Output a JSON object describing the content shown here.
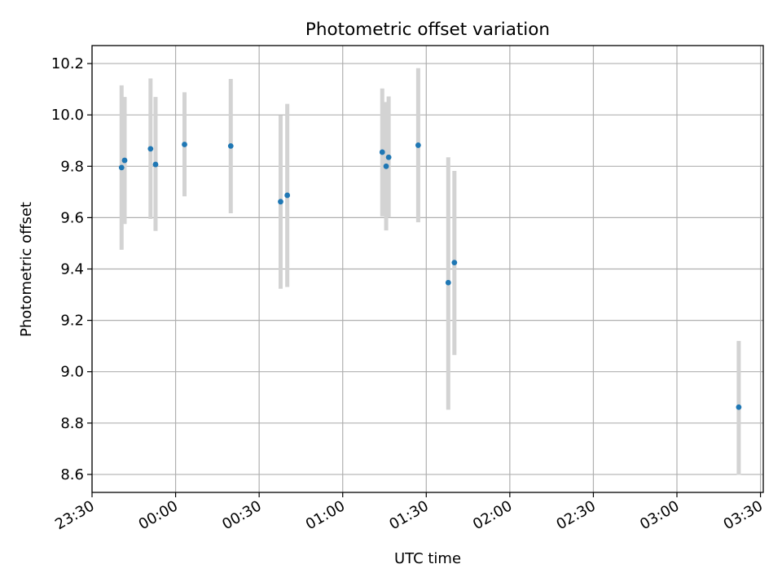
{
  "chart_data": {
    "type": "scatter",
    "title": "Photometric offset variation",
    "xlabel": "UTC time",
    "ylabel": "Photometric offset",
    "x_ticks": [
      "23:30",
      "00:00",
      "00:30",
      "01:00",
      "01:30",
      "02:00",
      "02:30",
      "03:00",
      "03:30"
    ],
    "y_ticks": [
      "8.6",
      "8.8",
      "9.0",
      "9.2",
      "9.4",
      "9.6",
      "9.8",
      "10.0",
      "10.2"
    ],
    "xlim": [
      "23:30",
      "03:31"
    ],
    "ylim": [
      8.53,
      10.27
    ],
    "grid": true,
    "colors": {
      "point": "#1f77b4",
      "errorbar": "#d3d3d3",
      "grid": "#b0b0b0"
    },
    "points": [
      {
        "x": "23:40.6",
        "y": 9.795,
        "ylow": 9.475,
        "yhigh": 10.115
      },
      {
        "x": "23:41.7",
        "y": 9.823,
        "ylow": 9.575,
        "yhigh": 10.07
      },
      {
        "x": "23:51.0",
        "y": 9.868,
        "ylow": 9.595,
        "yhigh": 10.142
      },
      {
        "x": "23:52.8",
        "y": 9.807,
        "ylow": 9.548,
        "yhigh": 10.07
      },
      {
        "x": "00:03.2",
        "y": 9.885,
        "ylow": 9.683,
        "yhigh": 10.088
      },
      {
        "x": "00:19.8",
        "y": 9.879,
        "ylow": 9.617,
        "yhigh": 10.14
      },
      {
        "x": "00:37.7",
        "y": 9.662,
        "ylow": 9.323,
        "yhigh": 9.999
      },
      {
        "x": "00:40.1",
        "y": 9.687,
        "ylow": 9.33,
        "yhigh": 10.043
      },
      {
        "x": "01:14.2",
        "y": 9.855,
        "ylow": 9.605,
        "yhigh": 10.103
      },
      {
        "x": "01:15.6",
        "y": 9.8,
        "ylow": 9.55,
        "yhigh": 10.05
      },
      {
        "x": "01:16.5",
        "y": 9.835,
        "ylow": 9.6,
        "yhigh": 10.072
      },
      {
        "x": "01:27.1",
        "y": 9.882,
        "ylow": 9.582,
        "yhigh": 10.182
      },
      {
        "x": "01:37.9",
        "y": 9.347,
        "ylow": 8.852,
        "yhigh": 9.835
      },
      {
        "x": "01:40.1",
        "y": 9.425,
        "ylow": 9.065,
        "yhigh": 9.782
      },
      {
        "x": "03:22.2",
        "y": 8.862,
        "ylow": 8.598,
        "yhigh": 9.12
      }
    ]
  }
}
